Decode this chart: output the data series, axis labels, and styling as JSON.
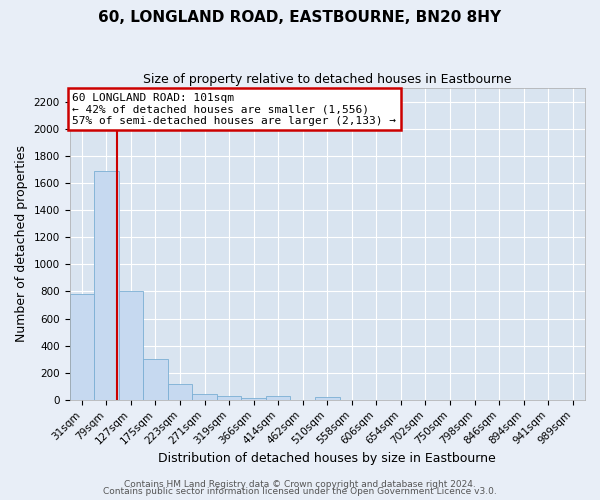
{
  "title": "60, LONGLAND ROAD, EASTBOURNE, BN20 8HY",
  "subtitle": "Size of property relative to detached houses in Eastbourne",
  "xlabel": "Distribution of detached houses by size in Eastbourne",
  "ylabel": "Number of detached properties",
  "bar_labels": [
    "31sqm",
    "79sqm",
    "127sqm",
    "175sqm",
    "223sqm",
    "271sqm",
    "319sqm",
    "366sqm",
    "414sqm",
    "462sqm",
    "510sqm",
    "558sqm",
    "606sqm",
    "654sqm",
    "702sqm",
    "750sqm",
    "798sqm",
    "846sqm",
    "894sqm",
    "941sqm",
    "989sqm"
  ],
  "bar_values": [
    780,
    1690,
    800,
    300,
    115,
    40,
    25,
    15,
    25,
    0,
    20,
    0,
    0,
    0,
    0,
    0,
    0,
    0,
    0,
    0,
    0
  ],
  "bar_color": "#c6d9f0",
  "bar_edge_color": "#7bafd4",
  "property_line_x": 1.45,
  "annotation_title": "60 LONGLAND ROAD: 101sqm",
  "annotation_line1": "← 42% of detached houses are smaller (1,556)",
  "annotation_line2": "57% of semi-detached houses are larger (2,133) →",
  "annotation_box_color": "#ffffff",
  "annotation_box_edge": "#cc0000",
  "red_line_color": "#cc0000",
  "ylim": [
    0,
    2300
  ],
  "yticks": [
    0,
    200,
    400,
    600,
    800,
    1000,
    1200,
    1400,
    1600,
    1800,
    2000,
    2200
  ],
  "footer_line1": "Contains HM Land Registry data © Crown copyright and database right 2024.",
  "footer_line2": "Contains public sector information licensed under the Open Government Licence v3.0.",
  "background_color": "#e8eef7",
  "plot_bg_color": "#d9e4f0",
  "grid_color": "#ffffff",
  "title_fontsize": 11,
  "subtitle_fontsize": 9,
  "xlabel_fontsize": 9,
  "ylabel_fontsize": 9,
  "tick_fontsize": 7.5,
  "annotation_fontsize": 8,
  "footer_fontsize": 6.5
}
